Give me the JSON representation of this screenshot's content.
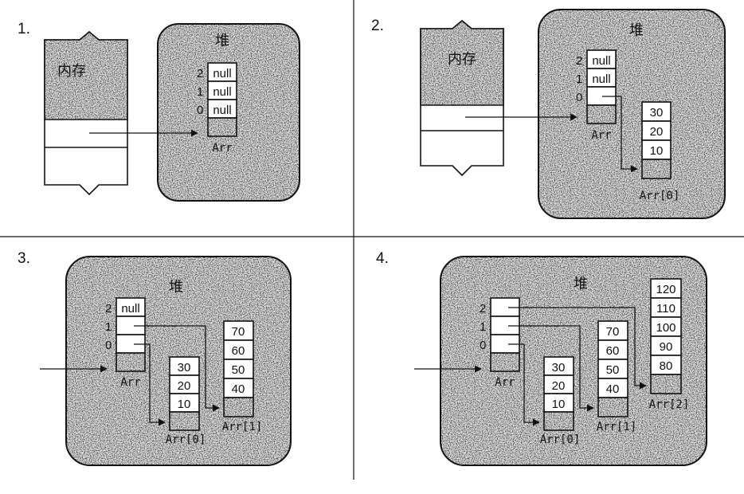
{
  "panels": [
    {
      "number": "1.",
      "memory_label": "内存",
      "heap_label": "堆",
      "arr_values": [
        "null",
        "null",
        "null"
      ],
      "arr_label": "Arr"
    },
    {
      "number": "2.",
      "memory_label": "内存",
      "heap_label": "堆",
      "arr_values": [
        "null",
        "null",
        ""
      ],
      "arr_label": "Arr",
      "sub_arrays": [
        {
          "values": [
            "30",
            "20",
            "10"
          ],
          "label": "Arr[0]"
        }
      ]
    },
    {
      "number": "3.",
      "heap_label": "堆",
      "arr_values": [
        "null",
        "",
        ""
      ],
      "arr_label": "Arr",
      "sub_arrays": [
        {
          "values": [
            "30",
            "20",
            "10"
          ],
          "label": "Arr[0]"
        },
        {
          "values": [
            "70",
            "60",
            "50",
            "40"
          ],
          "label": "Arr[1]"
        }
      ]
    },
    {
      "number": "4.",
      "heap_label": "堆",
      "arr_values": [
        "",
        "",
        ""
      ],
      "arr_label": "Arr",
      "sub_arrays": [
        {
          "values": [
            "30",
            "20",
            "10"
          ],
          "label": "Arr[0]"
        },
        {
          "values": [
            "70",
            "60",
            "50",
            "40"
          ],
          "label": "Arr[1]"
        },
        {
          "values": [
            "120",
            "110",
            "100",
            "90",
            "80"
          ],
          "label": "Arr[2]"
        }
      ]
    }
  ],
  "index_labels": [
    "2",
    "1",
    "0"
  ]
}
